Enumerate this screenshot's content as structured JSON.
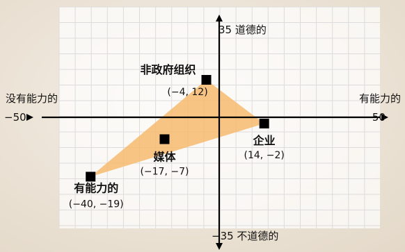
{
  "chart_data": {
    "type": "scatter",
    "xlim": [
      -50,
      50
    ],
    "ylim": [
      -35,
      35
    ],
    "grid": true,
    "axes": {
      "top_label": "35 道德的",
      "bottom_label": "−35 不道德的",
      "left_label": "没有能力的",
      "left_value": "−50",
      "right_label": "有能力的",
      "right_value": "50"
    },
    "points": [
      {
        "name": "非政府组织",
        "x": -4,
        "y": 12,
        "coord": "(−4, 12)"
      },
      {
        "name": "企业",
        "x": 14,
        "y": -2,
        "coord": "(14, −2)"
      },
      {
        "name": "媒体",
        "x": -17,
        "y": -7,
        "coord": "(−17, −7)"
      },
      {
        "name": "有能力的",
        "x": -40,
        "y": -19,
        "coord": "(−40, −19)"
      }
    ],
    "region": {
      "vertices": [
        "非政府组织",
        "企业",
        "有能力的"
      ],
      "color": "#f7b86a"
    },
    "colors": {
      "marker": "#000000",
      "axis": "#000000",
      "grid": "#dcdcdc",
      "plot_bg": "#ffffff",
      "region": "#f7b86a"
    }
  }
}
